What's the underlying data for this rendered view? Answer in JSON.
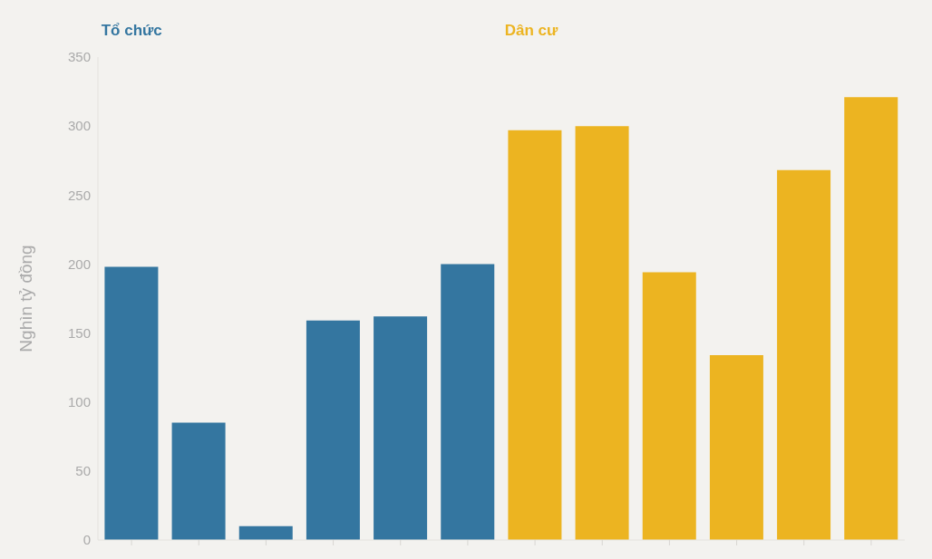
{
  "chart_data": {
    "type": "bar",
    "ylabel": "Nghìn tỷ đồng",
    "stacked": true,
    "categories": [
      null,
      null,
      null,
      null,
      null,
      null,
      null,
      null,
      null,
      null,
      null,
      null
    ],
    "series": [
      {
        "name": "Tổ chức",
        "color": "#3476a0",
        "values": [
          198,
          85,
          10,
          159,
          162,
          200,
          null,
          null,
          null,
          null,
          null,
          null
        ]
      },
      {
        "name": "Dân cư",
        "color": "#ecb421",
        "values": [
          null,
          null,
          null,
          null,
          null,
          null,
          297,
          300,
          194,
          134,
          268,
          321
        ]
      }
    ],
    "ylim": [
      0,
      350
    ],
    "yticks": [
      0,
      50,
      100,
      150,
      200,
      250,
      300,
      350
    ]
  }
}
